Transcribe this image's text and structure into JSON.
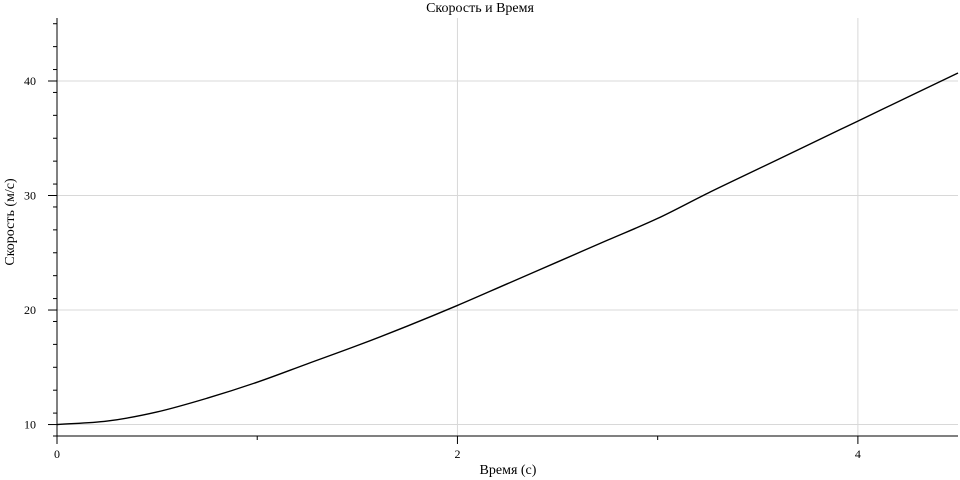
{
  "chart_data": {
    "type": "line",
    "title": "Скорость и Время",
    "xlabel": "Время (с)",
    "ylabel": "Скорость (м/с)",
    "xlim": [
      0,
      4.5
    ],
    "ylim": [
      9,
      45.5
    ],
    "x_ticks": [
      0,
      2,
      4
    ],
    "x_minor_ticks": [
      1,
      3
    ],
    "y_ticks": [
      10,
      20,
      30,
      40
    ],
    "grid": true,
    "legend": "none",
    "colors": {
      "line": "#000000",
      "grid": "#d8d8d8"
    },
    "series": [
      {
        "x": [
          0,
          0.25,
          0.5,
          0.75,
          1.0,
          1.25,
          1.5,
          1.75,
          2.0,
          2.25,
          2.5,
          2.75,
          3.0,
          3.25,
          3.5,
          3.75,
          4.0,
          4.25,
          4.5
        ],
        "values": [
          10.0,
          10.3,
          11.1,
          12.3,
          13.7,
          15.3,
          16.9,
          18.6,
          20.4,
          22.3,
          24.2,
          26.1,
          28.0,
          30.2,
          32.3,
          34.4,
          36.5,
          38.6,
          40.7
        ]
      }
    ]
  }
}
